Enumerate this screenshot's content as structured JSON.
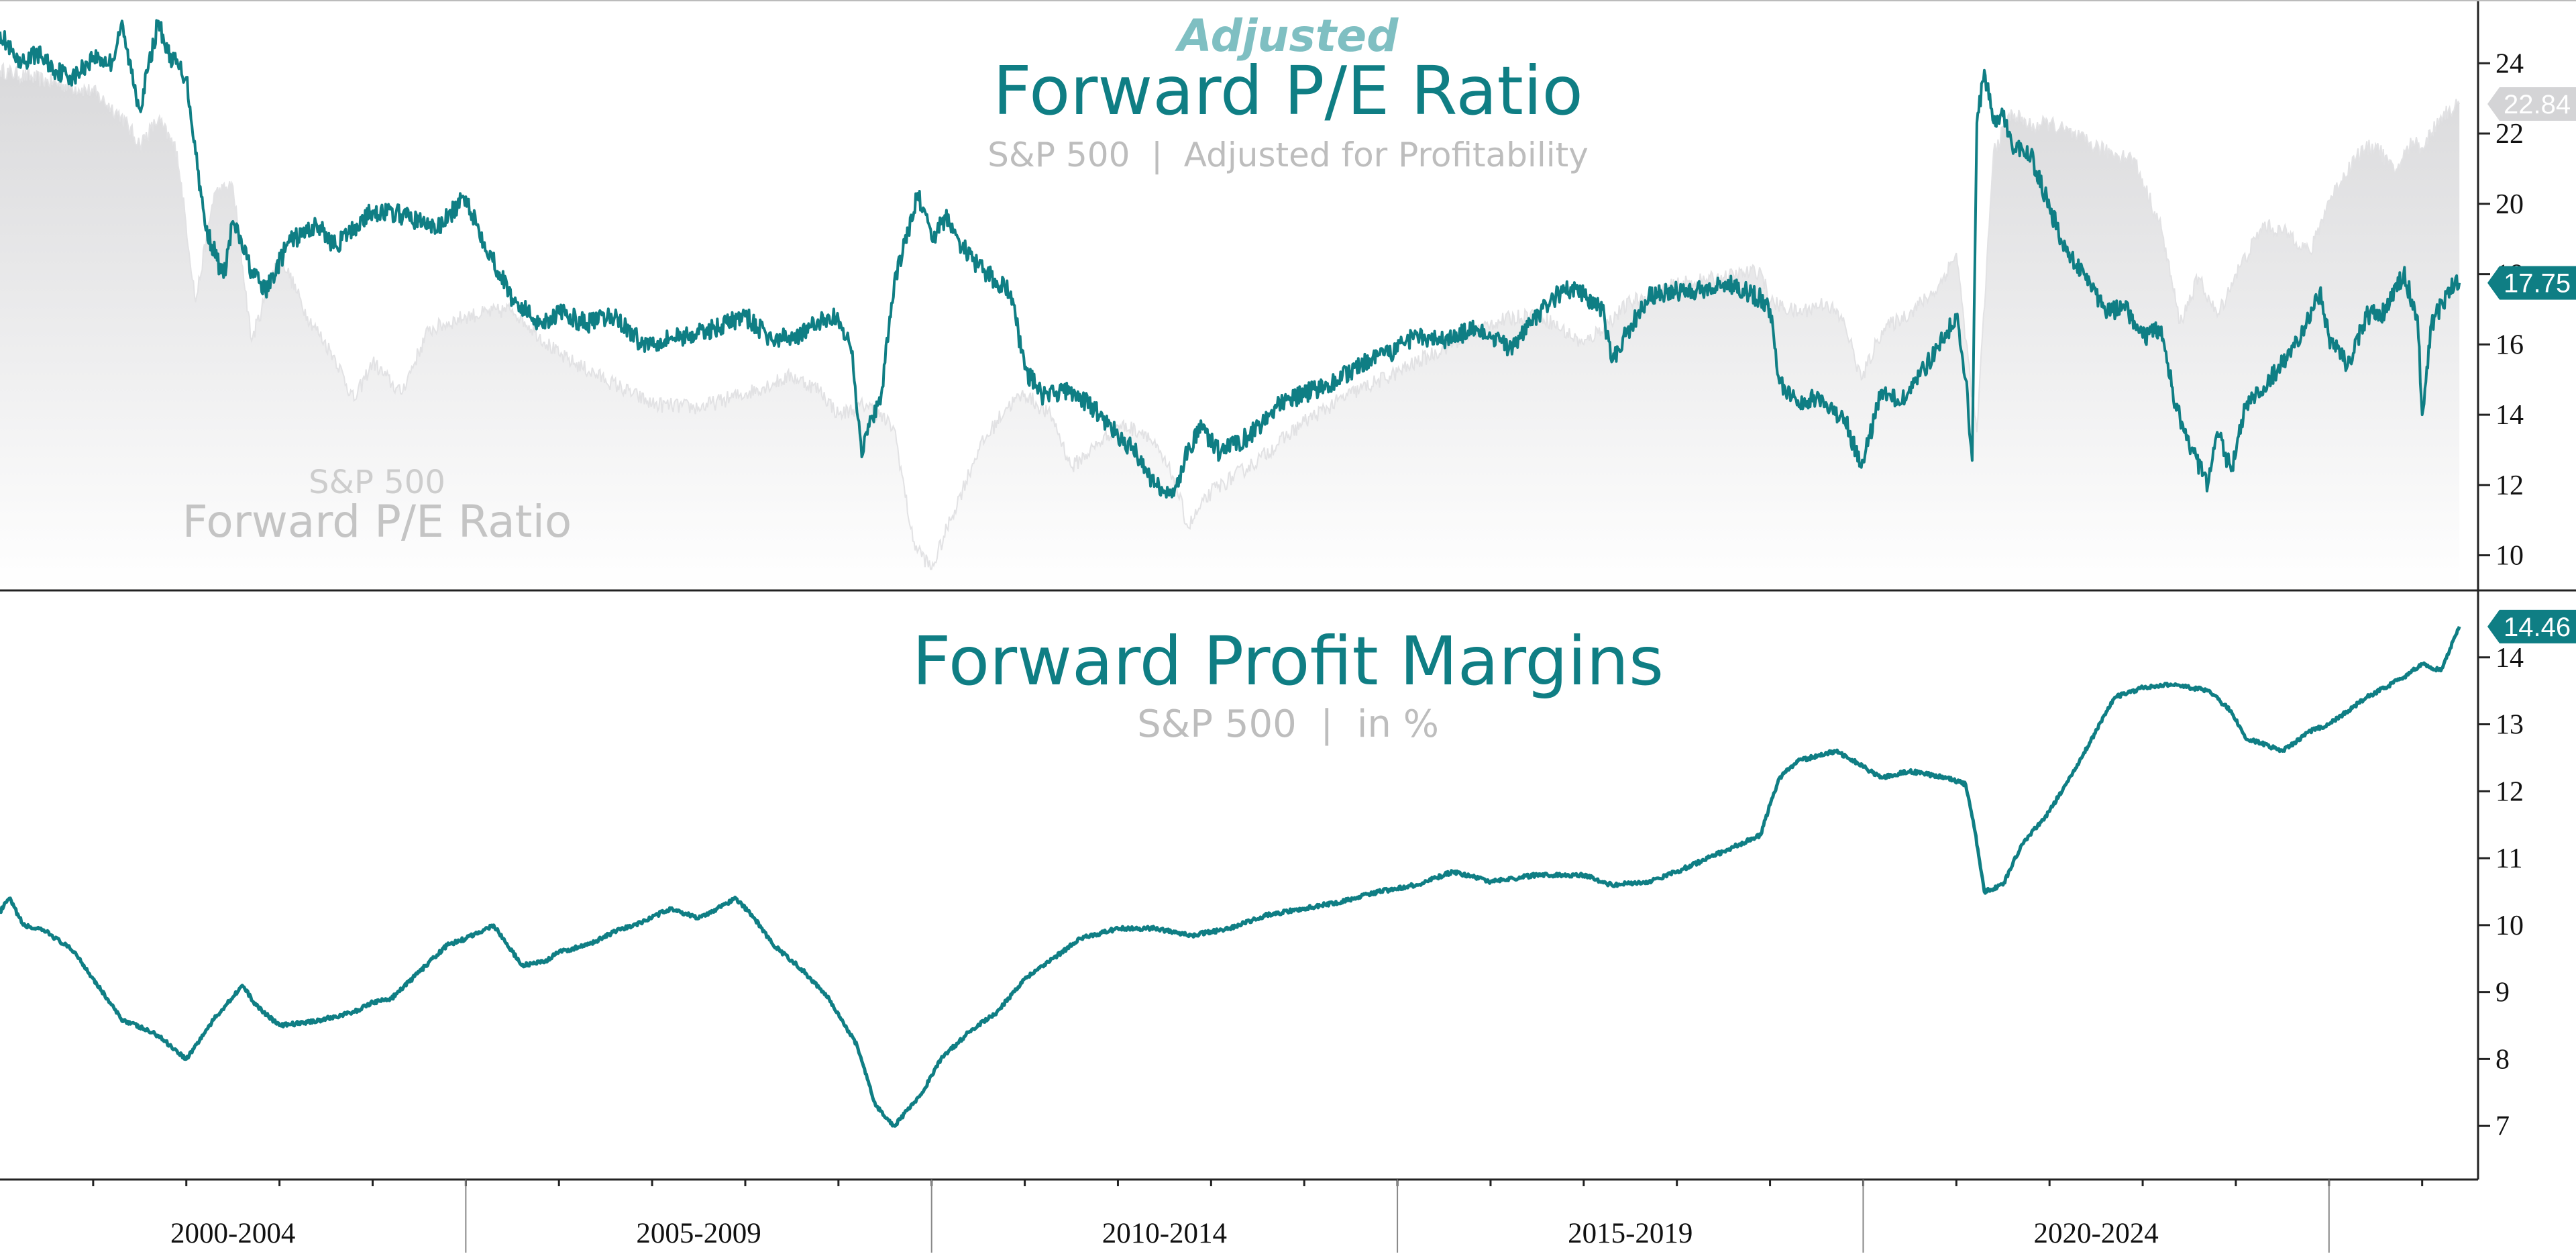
{
  "colors": {
    "teal": "#0f7e84",
    "teal_light": "#7fbfc2",
    "title_gray": "#bdbdbd",
    "area_gray_top": "#dcdcde",
    "area_gray_bottom": "#ffffff",
    "axis": "#222222"
  },
  "chart_data": [
    {
      "type": "line",
      "panel": "top",
      "kicker": "Adjusted",
      "title": "Forward P/E Ratio",
      "subtitle": "S&P 500  |  Adjusted for Profitability",
      "overlay_small": "S&P 500",
      "overlay_large": "Forward P/E Ratio",
      "ylim": [
        9,
        25.8
      ],
      "yticks": [
        10,
        12,
        14,
        16,
        18,
        20,
        22,
        24
      ],
      "x_range": [
        1999.0,
        2025.6
      ],
      "grid": false,
      "series": [
        {
          "name": "Forward P/E Ratio",
          "style": "area",
          "color": "#d6d6d8",
          "last_value_label": "22.84",
          "x": [
            1999.0,
            1999.5,
            2000.0,
            2000.3,
            2000.5,
            2000.7,
            2000.9,
            2001.1,
            2001.3,
            2001.5,
            2001.7,
            2002.0,
            2002.3,
            2002.6,
            2002.8,
            2003.0,
            2003.3,
            2003.6,
            2004.0,
            2004.5,
            2005.0,
            2005.5,
            2006.0,
            2006.5,
            2007.0,
            2007.5,
            2007.8,
            2008.0,
            2008.3,
            2008.6,
            2008.8,
            2009.0,
            2009.2,
            2009.5,
            2009.8,
            2010.0,
            2010.3,
            2010.5,
            2010.8,
            2011.0,
            2011.3,
            2011.6,
            2011.75,
            2012.0,
            2012.5,
            2013.0,
            2013.5,
            2014.0,
            2014.5,
            2015.0,
            2015.5,
            2016.0,
            2016.5,
            2017.0,
            2017.5,
            2017.9,
            2018.0,
            2018.3,
            2018.6,
            2018.8,
            2018.98,
            2019.2,
            2019.5,
            2019.8,
            2020.0,
            2020.15,
            2020.22,
            2020.4,
            2020.6,
            2020.8,
            2021.0,
            2021.3,
            2021.6,
            2021.9,
            2022.2,
            2022.4,
            2022.6,
            2022.8,
            2023.0,
            2023.3,
            2023.6,
            2023.8,
            2024.0,
            2024.3,
            2024.5,
            2024.7,
            2024.9,
            2025.0,
            2025.2,
            2025.4
          ],
          "y": [
            23.8,
            23.5,
            23.2,
            22.5,
            21.7,
            22.4,
            21.5,
            17.2,
            20.3,
            20.5,
            16.1,
            18.6,
            16.8,
            15.6,
            14.4,
            15.5,
            14.6,
            16.4,
            16.8,
            17.0,
            15.7,
            15.0,
            14.3,
            14.2,
            14.6,
            15.1,
            14.7,
            14.0,
            14.3,
            13.6,
            10.4,
            9.6,
            11.0,
            13.0,
            14.2,
            14.6,
            13.9,
            12.5,
            13.2,
            13.7,
            13.5,
            12.2,
            10.8,
            11.8,
            12.7,
            13.8,
            14.6,
            15.2,
            15.9,
            16.6,
            16.9,
            16.0,
            17.2,
            17.7,
            17.9,
            18.1,
            17.2,
            16.9,
            17.2,
            16.6,
            15.0,
            16.4,
            16.9,
            17.6,
            18.6,
            15.0,
            13.5,
            21.5,
            22.6,
            22.2,
            22.3,
            21.9,
            21.5,
            21.3,
            19.3,
            16.6,
            17.9,
            16.8,
            18.0,
            19.4,
            19.1,
            18.6,
            20.1,
            21.4,
            21.7,
            20.9,
            21.8,
            21.6,
            22.5,
            22.84
          ]
        },
        {
          "name": "Adjusted Forward P/E Ratio",
          "style": "line",
          "color": "#0f7e84",
          "last_value_label": "17.75",
          "x": [
            1999.0,
            1999.2,
            1999.4,
            1999.6,
            1999.8,
            2000.0,
            2000.2,
            2000.3,
            2000.5,
            2000.7,
            2000.8,
            2001.0,
            2001.2,
            2001.4,
            2001.5,
            2001.7,
            2001.85,
            2002.1,
            2002.4,
            2002.6,
            2003.0,
            2003.3,
            2003.7,
            2004.0,
            2004.2,
            2004.5,
            2004.8,
            2005.0,
            2005.3,
            2005.6,
            2005.9,
            2006.2,
            2006.5,
            2006.8,
            2007.0,
            2007.3,
            2007.6,
            2007.9,
            2008.0,
            2008.15,
            2008.25,
            2008.35,
            2008.45,
            2008.6,
            2008.75,
            2008.85,
            2009.0,
            2009.15,
            2009.3,
            2009.5,
            2009.7,
            2009.85,
            2010.0,
            2010.2,
            2010.4,
            2010.6,
            2010.8,
            2011.0,
            2011.2,
            2011.4,
            2011.6,
            2011.75,
            2011.9,
            2012.1,
            2012.4,
            2012.7,
            2013.0,
            2013.3,
            2013.6,
            2013.9,
            2014.2,
            2014.5,
            2014.8,
            2015.0,
            2015.2,
            2015.4,
            2015.6,
            2015.8,
            2016.0,
            2016.2,
            2016.3,
            2016.5,
            2016.7,
            2017.0,
            2017.3,
            2017.6,
            2017.9,
            2018.0,
            2018.1,
            2018.3,
            2018.5,
            2018.7,
            2018.8,
            2018.98,
            2019.2,
            2019.4,
            2019.6,
            2019.8,
            2020.0,
            2020.1,
            2020.17,
            2020.22,
            2020.3,
            2020.4,
            2020.5,
            2020.6,
            2020.8,
            2021.0,
            2021.2,
            2021.4,
            2021.6,
            2021.8,
            2022.0,
            2022.2,
            2022.35,
            2022.5,
            2022.7,
            2022.8,
            2022.95,
            2023.1,
            2023.3,
            2023.5,
            2023.7,
            2023.9,
            2024.0,
            2024.2,
            2024.4,
            2024.6,
            2024.8,
            2024.95,
            2025.0,
            2025.1,
            2025.3,
            2025.4
          ],
          "y": [
            24.9,
            23.9,
            24.3,
            23.8,
            23.6,
            24.2,
            24.0,
            25.1,
            22.7,
            25.2,
            24.3,
            23.6,
            19.4,
            17.9,
            19.5,
            18.1,
            17.5,
            18.9,
            19.4,
            18.8,
            19.8,
            19.7,
            19.3,
            20.2,
            18.9,
            17.3,
            16.6,
            16.9,
            16.6,
            16.8,
            16.0,
            16.2,
            16.3,
            16.6,
            16.8,
            16.1,
            16.3,
            16.8,
            16.7,
            15.8,
            12.8,
            13.9,
            14.3,
            17.8,
            19.2,
            20.3,
            19.0,
            19.6,
            18.9,
            18.2,
            17.8,
            17.5,
            15.3,
            14.5,
            14.7,
            14.5,
            14.0,
            13.4,
            12.9,
            12.0,
            11.7,
            13.0,
            13.6,
            12.9,
            13.4,
            14.2,
            14.6,
            14.9,
            15.4,
            15.7,
            16.3,
            16.1,
            16.4,
            16.2,
            15.9,
            16.5,
            17.1,
            17.6,
            17.4,
            17.0,
            15.5,
            16.5,
            17.4,
            17.5,
            17.6,
            17.7,
            17.3,
            17.0,
            14.9,
            14.4,
            14.5,
            14.0,
            13.9,
            12.5,
            14.7,
            14.3,
            15.1,
            15.9,
            16.8,
            15.0,
            12.7,
            22.3,
            23.8,
            22.3,
            22.5,
            21.6,
            21.4,
            19.9,
            18.5,
            18.0,
            16.9,
            17.1,
            16.2,
            16.5,
            14.3,
            13.1,
            12.0,
            13.5,
            12.4,
            14.3,
            14.8,
            15.5,
            16.2,
            17.5,
            16.2,
            15.4,
            16.8,
            16.9,
            18.0,
            16.8,
            14.0,
            16.6,
            17.6,
            17.75
          ]
        }
      ]
    },
    {
      "type": "line",
      "panel": "bottom",
      "title": "Forward Profit Margins",
      "subtitle": "S&P 500  |  in %",
      "ylim": [
        6.2,
        15.0
      ],
      "yticks": [
        7,
        8,
        9,
        10,
        11,
        12,
        13,
        14
      ],
      "x_range": [
        1999.0,
        2025.6
      ],
      "grid": false,
      "series": [
        {
          "name": "Forward Profit Margins",
          "color": "#0f7e84",
          "last_value_label": "14.46",
          "x": [
            1999.0,
            1999.1,
            1999.25,
            1999.5,
            1999.8,
            2000.0,
            2000.3,
            2000.7,
            2001.0,
            2001.3,
            2001.6,
            2001.75,
            2002.0,
            2002.3,
            2002.5,
            2002.8,
            2003.0,
            2003.2,
            2003.5,
            2003.8,
            2004.0,
            2004.3,
            2004.6,
            2004.85,
            2005.0,
            2005.3,
            2005.6,
            2005.9,
            2006.2,
            2006.5,
            2006.9,
            2007.1,
            2007.3,
            2007.6,
            2007.9,
            2008.2,
            2008.4,
            2008.6,
            2008.9,
            2009.1,
            2009.4,
            2009.7,
            2010.0,
            2010.3,
            2010.6,
            2011.0,
            2011.4,
            2011.8,
            2012.2,
            2012.6,
            2013.0,
            2013.4,
            2013.8,
            2014.2,
            2014.6,
            2015.0,
            2015.5,
            2016.0,
            2016.3,
            2016.7,
            2017.0,
            2017.5,
            2017.9,
            2018.0,
            2018.1,
            2018.3,
            2018.7,
            2018.9,
            2019.2,
            2019.5,
            2019.9,
            2020.1,
            2020.2,
            2020.3,
            2020.5,
            2020.7,
            2021.0,
            2021.3,
            2021.7,
            2022.0,
            2022.3,
            2022.5,
            2022.7,
            2022.95,
            2023.1,
            2023.5,
            2023.8,
            2024.0,
            2024.4,
            2024.8,
            2025.0,
            2025.2,
            2025.4
          ],
          "y": [
            10.2,
            10.4,
            10.0,
            9.9,
            9.6,
            9.2,
            8.6,
            8.35,
            8.0,
            8.6,
            9.1,
            8.8,
            8.5,
            8.55,
            8.6,
            8.7,
            8.85,
            8.9,
            9.3,
            9.7,
            9.8,
            10.0,
            9.4,
            9.45,
            9.6,
            9.7,
            9.9,
            10.05,
            10.25,
            10.1,
            10.4,
            10.1,
            9.7,
            9.35,
            8.9,
            8.2,
            7.3,
            7.0,
            7.5,
            8.0,
            8.4,
            8.7,
            9.2,
            9.5,
            9.8,
            9.95,
            9.95,
            9.85,
            9.95,
            10.15,
            10.25,
            10.35,
            10.5,
            10.6,
            10.8,
            10.65,
            10.75,
            10.75,
            10.6,
            10.65,
            10.8,
            11.1,
            11.35,
            11.8,
            12.2,
            12.45,
            12.6,
            12.45,
            12.2,
            12.3,
            12.2,
            12.1,
            11.4,
            10.5,
            10.6,
            11.2,
            11.7,
            12.4,
            13.4,
            13.55,
            13.6,
            13.55,
            13.5,
            13.2,
            12.8,
            12.6,
            12.9,
            13.0,
            13.4,
            13.7,
            13.9,
            13.8,
            14.46
          ]
        }
      ]
    },
    {
      "type": "table",
      "panel": "x-axis",
      "periods": [
        {
          "label": "2000-2004",
          "start": 1999.0,
          "end": 2004.0
        },
        {
          "label": "2005-2009",
          "start": 2004.0,
          "end": 2009.0
        },
        {
          "label": "2010-2014",
          "start": 2009.0,
          "end": 2014.0
        },
        {
          "label": "2015-2019",
          "start": 2014.0,
          "end": 2019.0
        },
        {
          "label": "2020-2024",
          "start": 2019.0,
          "end": 2024.0
        }
      ]
    }
  ]
}
